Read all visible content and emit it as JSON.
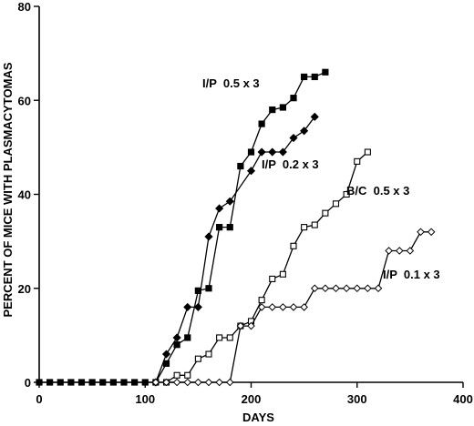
{
  "chart_data": {
    "type": "line",
    "xlabel": "DAYS",
    "ylabel": "PERCENT OF MICE WITH PLASMACYTOMAS",
    "xlim": [
      0,
      400
    ],
    "ylim": [
      0,
      80
    ],
    "xticks": [
      0,
      100,
      200,
      300,
      400
    ],
    "yticks": [
      0,
      20,
      40,
      60,
      80
    ],
    "grid": false,
    "legend": "none",
    "series": [
      {
        "name": "I/P  0.5 x 3",
        "marker": "filled-square",
        "x": [
          0,
          10,
          20,
          30,
          40,
          50,
          60,
          70,
          80,
          90,
          100,
          110,
          120,
          130,
          140,
          150,
          160,
          170,
          180,
          190,
          200,
          210,
          220,
          230,
          240,
          250,
          260,
          270
        ],
        "y": [
          0,
          0,
          0,
          0,
          0,
          0,
          0,
          0,
          0,
          0,
          0,
          0,
          4,
          8,
          9.5,
          19.5,
          20,
          33,
          33,
          46,
          49,
          55,
          58,
          58.5,
          60.5,
          65,
          65,
          66
        ]
      },
      {
        "name": "I/P  0.2 x 3",
        "marker": "filled-diamond",
        "x": [
          110,
          120,
          130,
          140,
          150,
          160,
          170,
          180,
          200,
          210,
          220,
          230,
          240,
          250,
          260
        ],
        "y": [
          0,
          6,
          9.5,
          16,
          16,
          31,
          37,
          38.5,
          45,
          49,
          49,
          49,
          52,
          53.5,
          56.5
        ]
      },
      {
        "name": "B/C  0.5 x 3",
        "marker": "open-square",
        "x": [
          120,
          130,
          140,
          150,
          160,
          170,
          180,
          190,
          200,
          210,
          220,
          230,
          240,
          250,
          260,
          270,
          280,
          290,
          300,
          310
        ],
        "y": [
          0,
          1.5,
          1.5,
          5,
          6,
          9.5,
          9.5,
          12,
          13,
          17.5,
          22,
          23,
          29,
          33,
          33.5,
          36,
          38,
          40,
          47,
          49
        ]
      },
      {
        "name": "I/P  0.1 x 3",
        "marker": "open-diamond",
        "x": [
          110,
          120,
          130,
          140,
          150,
          160,
          170,
          180,
          190,
          200,
          210,
          220,
          230,
          240,
          250,
          260,
          270,
          280,
          290,
          300,
          310,
          320,
          330,
          340,
          350,
          360,
          370
        ],
        "y": [
          0,
          0,
          0,
          0,
          0,
          0,
          0,
          0,
          12,
          12,
          16,
          16,
          16,
          16,
          16,
          20,
          20,
          20,
          20,
          20,
          20,
          20,
          28,
          28,
          28,
          32,
          32
        ]
      }
    ]
  }
}
